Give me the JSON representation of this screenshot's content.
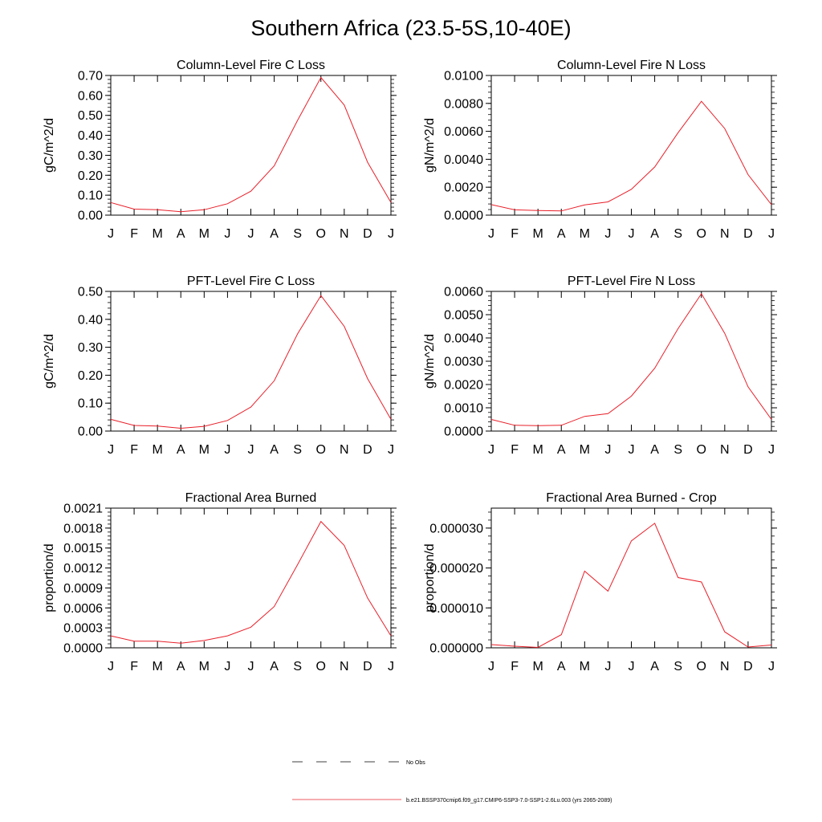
{
  "page": {
    "title": "Southern Africa (23.5-5S,10-40E)"
  },
  "colors": {
    "series": "#e8202a",
    "axis": "#000000",
    "obs": "#000000"
  },
  "legend": {
    "obs_label": "No Obs",
    "model_label": "b.e21.BSSP370cmip6.f09_g17.CMIP6-SSP3-7.0-SSP1-2.6Lu.003 (yrs 2065-2089)"
  },
  "chart_data": [
    {
      "type": "line",
      "title": "Column-Level Fire C Loss",
      "ylabel": "gC/m^2/d",
      "categories": [
        "J",
        "F",
        "M",
        "A",
        "M",
        "J",
        "J",
        "A",
        "S",
        "O",
        "N",
        "D",
        "J"
      ],
      "ylim": [
        0,
        0.7
      ],
      "yticks": [
        0,
        0.1,
        0.2,
        0.3,
        0.4,
        0.5,
        0.6,
        0.7
      ],
      "ytick_labels": [
        "0.00",
        "0.10",
        "0.20",
        "0.30",
        "0.40",
        "0.50",
        "0.60",
        "0.70"
      ],
      "series": [
        {
          "values": [
            0.063,
            0.03,
            0.027,
            0.017,
            0.027,
            0.057,
            0.12,
            0.247,
            0.475,
            0.69,
            0.552,
            0.265,
            0.063
          ]
        }
      ]
    },
    {
      "type": "line",
      "title": "Column-Level Fire N Loss",
      "ylabel": "gN/m^2/d",
      "categories": [
        "J",
        "F",
        "M",
        "A",
        "M",
        "J",
        "J",
        "A",
        "S",
        "O",
        "N",
        "D",
        "J"
      ],
      "ylim": [
        0,
        0.01
      ],
      "yticks": [
        0,
        0.002,
        0.004,
        0.006,
        0.008,
        0.01
      ],
      "ytick_labels": [
        "0.0000",
        "0.0020",
        "0.0040",
        "0.0060",
        "0.0080",
        "0.0100"
      ],
      "series": [
        {
          "values": [
            0.00075,
            0.00038,
            0.00033,
            0.0003,
            0.00073,
            0.00095,
            0.00185,
            0.00345,
            0.0059,
            0.00815,
            0.0062,
            0.0029,
            0.00075
          ]
        }
      ]
    },
    {
      "type": "line",
      "title": "PFT-Level Fire C Loss",
      "ylabel": "gC/m^2/d",
      "categories": [
        "J",
        "F",
        "M",
        "A",
        "M",
        "J",
        "J",
        "A",
        "S",
        "O",
        "N",
        "D",
        "J"
      ],
      "ylim": [
        0,
        0.5
      ],
      "yticks": [
        0,
        0.1,
        0.2,
        0.3,
        0.4,
        0.5
      ],
      "ytick_labels": [
        "0.00",
        "0.10",
        "0.20",
        "0.30",
        "0.40",
        "0.50"
      ],
      "series": [
        {
          "values": [
            0.042,
            0.02,
            0.018,
            0.01,
            0.017,
            0.038,
            0.086,
            0.18,
            0.348,
            0.485,
            0.375,
            0.188,
            0.042
          ]
        }
      ]
    },
    {
      "type": "line",
      "title": "PFT-Level Fire N Loss",
      "ylabel": "gN/m^2/d",
      "categories": [
        "J",
        "F",
        "M",
        "A",
        "M",
        "J",
        "J",
        "A",
        "S",
        "O",
        "N",
        "D",
        "J"
      ],
      "ylim": [
        0,
        0.006
      ],
      "yticks": [
        0,
        0.001,
        0.002,
        0.003,
        0.004,
        0.005,
        0.006
      ],
      "ytick_labels": [
        "0.0000",
        "0.0010",
        "0.0020",
        "0.0030",
        "0.0040",
        "0.0050",
        "0.0060"
      ],
      "series": [
        {
          "values": [
            0.0005,
            0.00025,
            0.00023,
            0.00025,
            0.00063,
            0.00075,
            0.0015,
            0.0027,
            0.0044,
            0.0059,
            0.0042,
            0.0019,
            0.0005
          ]
        }
      ]
    },
    {
      "type": "line",
      "title": "Fractional Area Burned",
      "ylabel": "proportion/d",
      "categories": [
        "J",
        "F",
        "M",
        "A",
        "M",
        "J",
        "J",
        "A",
        "S",
        "O",
        "N",
        "D",
        "J"
      ],
      "ylim": [
        0,
        0.0021
      ],
      "yticks": [
        0,
        0.0003,
        0.0006,
        0.0009,
        0.0012,
        0.0015,
        0.0018,
        0.0021
      ],
      "ytick_labels": [
        "0.0000",
        "0.0003",
        "0.0006",
        "0.0009",
        "0.0012",
        "0.0015",
        "0.0018",
        "0.0021"
      ],
      "series": [
        {
          "values": [
            0.00018,
            0.0001,
            0.0001,
            7e-05,
            0.00011,
            0.00018,
            0.00031,
            0.00062,
            0.00125,
            0.0019,
            0.00154,
            0.00075,
            0.00018
          ]
        }
      ]
    },
    {
      "type": "line",
      "title": "Fractional Area Burned - Crop",
      "ylabel": "proportion/d",
      "categories": [
        "J",
        "F",
        "M",
        "A",
        "M",
        "J",
        "J",
        "A",
        "S",
        "O",
        "N",
        "D",
        "J"
      ],
      "ylim": [
        0,
        3.5e-05
      ],
      "yticks": [
        0,
        1e-05,
        2e-05,
        3e-05
      ],
      "ytick_labels": [
        "0.000000",
        "0.000010",
        "0.000020",
        "0.000030"
      ],
      "series": [
        {
          "values": [
            8e-07,
            4e-07,
            1e-07,
            3.3e-06,
            1.92e-05,
            1.42e-05,
            2.68e-05,
            3.12e-05,
            1.76e-05,
            1.65e-05,
            4e-06,
            2e-07,
            7e-07
          ]
        }
      ]
    }
  ]
}
